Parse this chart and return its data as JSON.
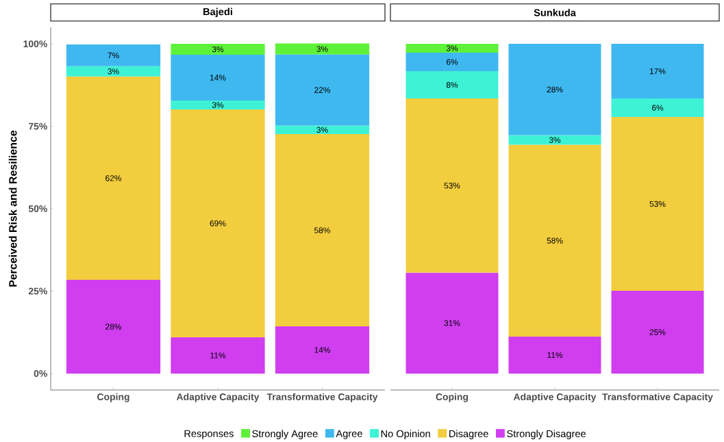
{
  "chart_data": [
    {
      "type": "bar",
      "stacked": true,
      "title": "Bajedi",
      "ylabel": "Perceived Risk and Resilience",
      "legend": "bottom",
      "legend_title": "Responses",
      "categories": [
        "Coping",
        "Adaptive Capacity",
        "Transformative Capacity"
      ],
      "ylim": [
        -5,
        105
      ],
      "yticks": [
        {
          "value": 0,
          "label": "0%"
        },
        {
          "value": 25,
          "label": "25%"
        },
        {
          "value": 50,
          "label": "50%"
        },
        {
          "value": 75,
          "label": "75%"
        },
        {
          "value": 100,
          "label": "100%"
        }
      ],
      "series": [
        {
          "name": "Strongly Disagree",
          "color": "#d03ef0",
          "values": [
            28.4,
            11.0,
            14.3
          ],
          "value_labels": [
            "28%",
            "11%",
            "14%"
          ]
        },
        {
          "name": "Disagree",
          "color": "#f2cd3e",
          "values": [
            61.7,
            69.1,
            58.3
          ],
          "value_labels": [
            "62%",
            "69%",
            "58%"
          ]
        },
        {
          "name": "No Opinion",
          "color": "#3ef2d6",
          "values": [
            3.1,
            2.7,
            2.6
          ],
          "value_labels": [
            "3%",
            "3%",
            "3%"
          ]
        },
        {
          "name": "Agree",
          "color": "#3fb8f0",
          "values": [
            6.6,
            13.9,
            21.6
          ],
          "value_labels": [
            "7%",
            "14%",
            "22%"
          ]
        },
        {
          "name": "Strongly Agree",
          "color": "#5ef13a",
          "values": [
            null,
            3.3,
            3.3
          ],
          "value_labels": [
            null,
            "3%",
            "3%"
          ]
        }
      ]
    },
    {
      "type": "bar",
      "stacked": true,
      "title": "Sunkuda",
      "tick_labels": "x",
      "categories": [
        "Coping",
        "Adaptive Capacity",
        "Transformative Capacity"
      ],
      "series": [
        {
          "color": "#d03ef0",
          "values": [
            30.6,
            11.2,
            25.1
          ],
          "value_labels": [
            "31%",
            "11%",
            "25%"
          ]
        },
        {
          "color": "#f2cd3e",
          "values": [
            52.8,
            58.2,
            52.7
          ],
          "value_labels": [
            "53%",
            "58%",
            "53%"
          ]
        },
        {
          "color": "#3ef2d6",
          "values": [
            8.3,
            2.9,
            5.6
          ],
          "value_labels": [
            "8%",
            "3%",
            "6%"
          ]
        },
        {
          "color": "#3fb8f0",
          "values": [
            5.6,
            27.7,
            16.6
          ],
          "value_labels": [
            "6%",
            "28%",
            "17%"
          ]
        },
        {
          "color": "#5ef13a",
          "values": [
            2.7,
            null,
            null
          ],
          "value_labels": [
            "3%",
            null,
            null
          ]
        }
      ]
    }
  ]
}
